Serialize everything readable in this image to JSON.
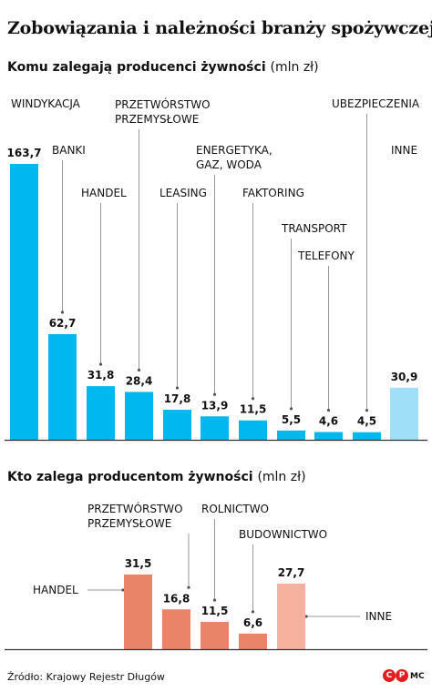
{
  "title": "Zobowiązania i należności branży spożywczej",
  "section1": {
    "label": "Komu zalegają producenci żywności",
    "unit": "(mln zł)"
  },
  "section2": {
    "label": "Kto zalega producentom żywności",
    "unit": "(mln zł)"
  },
  "source": "Źródło: Krajowy Rejestr Długów",
  "credit": "MC",
  "logo_letters": [
    "C",
    "P"
  ],
  "colors": {
    "blue": "#00b7ee",
    "blue_light": "#9fe0f8",
    "salmon": "#e98468",
    "salmon_light": "#f7b29f",
    "leader": "#999999",
    "axis": "#333333",
    "logo": "#e02020"
  },
  "chart_data": [
    {
      "type": "bar",
      "categories": [
        "WINDYKACJA",
        "BANKI",
        "HANDEL",
        "PRZETWÓRSTWO PRZEMYSŁOWE",
        "LEASING",
        "ENERGETYKA, GAZ, WODA",
        "FAKTORING",
        "TRANSPORT",
        "TELEFONY",
        "UBEZPIECZENIA",
        "INNE"
      ],
      "values": [
        163.7,
        62.7,
        31.8,
        28.4,
        17.8,
        13.9,
        11.5,
        5.5,
        4.6,
        4.5,
        30.9
      ],
      "value_labels": [
        "163,7",
        "62,7",
        "31,8",
        "28,4",
        "17,8",
        "13,9",
        "11,5",
        "5,5",
        "4,6",
        "4,5",
        "30,9"
      ],
      "highlight_last": true
    },
    {
      "type": "bar",
      "categories": [
        "HANDEL",
        "PRZETWÓRSTWO PRZEMYSŁOWE",
        "ROLNICTWO",
        "BUDOWNICTWO",
        "INNE"
      ],
      "values": [
        31.5,
        16.8,
        11.5,
        6.6,
        27.7
      ],
      "value_labels": [
        "31,5",
        "16,8",
        "11,5",
        "6,6",
        "27,7"
      ],
      "highlight_last": true
    }
  ]
}
